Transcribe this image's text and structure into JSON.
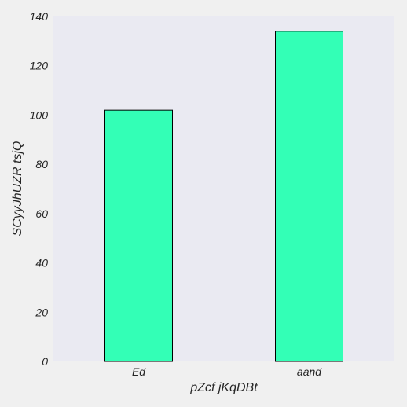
{
  "colors": {
    "figure_background": "#f0f0f0",
    "plot_background": "#eaeaf2",
    "bar_fill": "#33ffb6",
    "bar_edge": "#000000",
    "text": "#262626"
  },
  "chart_data": {
    "type": "bar",
    "categories": [
      "Ed",
      "aand"
    ],
    "values": [
      102,
      134
    ],
    "xlabel": "pZcf  jKqDBt",
    "ylabel": "SCyyJhUZR tsjQ",
    "ylim": [
      0,
      140
    ],
    "yticks": [
      0,
      20,
      40,
      60,
      80,
      100,
      120,
      140
    ],
    "grid": false,
    "legend": "none"
  }
}
